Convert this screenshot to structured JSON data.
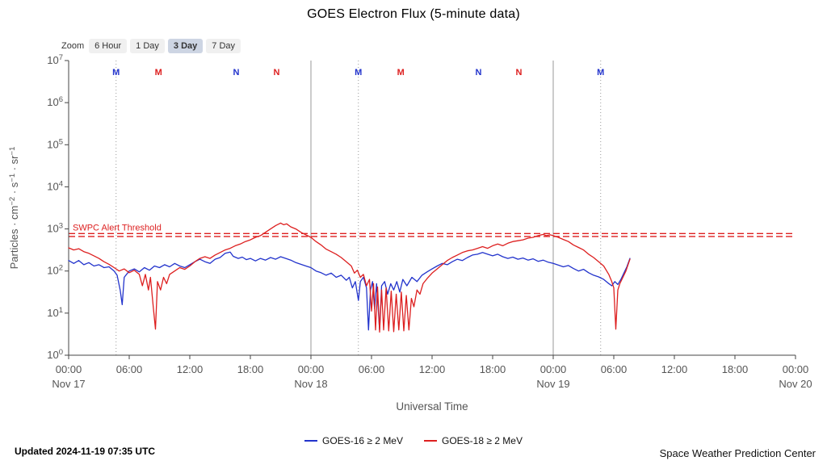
{
  "title": "GOES Electron Flux (5-minute data)",
  "zoom": {
    "label": "Zoom",
    "options": [
      {
        "label": "6 Hour",
        "selected": false
      },
      {
        "label": "1 Day",
        "selected": false
      },
      {
        "label": "3 Day",
        "selected": true
      },
      {
        "label": "7 Day",
        "selected": false
      }
    ]
  },
  "legend": [
    {
      "label": "GOES-16 ≥ 2 MeV",
      "color": "#2233cc"
    },
    {
      "label": "GOES-18 ≥ 2 MeV",
      "color": "#dd1f1f"
    }
  ],
  "footer": {
    "updated": "Updated 2024-11-19 07:35 UTC",
    "source": "Space Weather Prediction Center"
  },
  "chart_data": {
    "type": "line",
    "title": "GOES Electron Flux (5-minute data)",
    "xlabel": "Universal Time",
    "ylabel": "Particles · cm⁻² · s⁻¹ · sr⁻¹",
    "ylabel_segments": [
      {
        "text": "Particles · cm",
        "sup": false
      },
      {
        "text": "−2",
        "sup": true
      },
      {
        "text": " · s",
        "sup": false
      },
      {
        "text": "−1",
        "sup": true
      },
      {
        "text": " · sr",
        "sup": false
      },
      {
        "text": "−1",
        "sup": true
      }
    ],
    "y_scale": "log10",
    "ylim_log10": [
      0,
      7
    ],
    "y_exponents": [
      0,
      1,
      2,
      3,
      4,
      5,
      6,
      7
    ],
    "xlim": [
      0,
      72
    ],
    "x_unit": "hours since Nov 17 00:00 UT",
    "x_ticks": [
      {
        "hour": 0,
        "label": "00:00",
        "date": "Nov 17"
      },
      {
        "hour": 6,
        "label": "06:00"
      },
      {
        "hour": 12,
        "label": "12:00"
      },
      {
        "hour": 18,
        "label": "18:00"
      },
      {
        "hour": 24,
        "label": "00:00",
        "date": "Nov 18"
      },
      {
        "hour": 30,
        "label": "06:00"
      },
      {
        "hour": 36,
        "label": "12:00"
      },
      {
        "hour": 42,
        "label": "18:00"
      },
      {
        "hour": 48,
        "label": "00:00",
        "date": "Nov 19"
      },
      {
        "hour": 54,
        "label": "06:00"
      },
      {
        "hour": 60,
        "label": "12:00"
      },
      {
        "hour": 66,
        "label": "18:00"
      },
      {
        "hour": 72,
        "label": "00:00",
        "date": "Nov 20"
      }
    ],
    "day_lines_hours": [
      24,
      48
    ],
    "dotted_lines_hours": [
      4.7,
      28.7,
      52.7
    ],
    "threshold": {
      "label": "SWPC Alert Threshold",
      "lines_log10": [
        2.89,
        2.82
      ],
      "color": "#dd1f1f"
    },
    "satellite_markers": [
      {
        "hour": 4.7,
        "label": "M",
        "color": "#2233cc"
      },
      {
        "hour": 8.9,
        "label": "M",
        "color": "#dd1f1f"
      },
      {
        "hour": 16.6,
        "label": "N",
        "color": "#2233cc"
      },
      {
        "hour": 20.6,
        "label": "N",
        "color": "#dd1f1f"
      },
      {
        "hour": 28.7,
        "label": "M",
        "color": "#2233cc"
      },
      {
        "hour": 32.9,
        "label": "M",
        "color": "#dd1f1f"
      },
      {
        "hour": 40.6,
        "label": "N",
        "color": "#2233cc"
      },
      {
        "hour": 44.6,
        "label": "N",
        "color": "#dd1f1f"
      },
      {
        "hour": 52.7,
        "label": "M",
        "color": "#2233cc"
      }
    ],
    "legend_position": "bottom",
    "grid": "vertical day separators solid, satellite-midnight lines dotted, no horizontal gridlines",
    "series": [
      {
        "name": "GOES-16 ≥ 2 MeV",
        "color": "#2233cc",
        "points": [
          [
            0,
            2.25
          ],
          [
            0.5,
            2.18
          ],
          [
            1,
            2.25
          ],
          [
            1.5,
            2.15
          ],
          [
            2,
            2.2
          ],
          [
            2.5,
            2.12
          ],
          [
            3,
            2.15
          ],
          [
            3.5,
            2.08
          ],
          [
            4,
            2.1
          ],
          [
            4.5,
            2.0
          ],
          [
            4.8,
            1.9
          ],
          [
            5.1,
            1.55
          ],
          [
            5.3,
            1.2
          ],
          [
            5.5,
            1.85
          ],
          [
            6,
            2.0
          ],
          [
            6.5,
            2.05
          ],
          [
            7,
            1.98
          ],
          [
            7.5,
            2.08
          ],
          [
            8,
            2.02
          ],
          [
            8.5,
            2.12
          ],
          [
            9,
            2.08
          ],
          [
            9.5,
            2.15
          ],
          [
            10,
            2.1
          ],
          [
            10.5,
            2.18
          ],
          [
            11,
            2.12
          ],
          [
            11.5,
            2.08
          ],
          [
            12,
            2.15
          ],
          [
            12.5,
            2.22
          ],
          [
            13,
            2.28
          ],
          [
            13.5,
            2.22
          ],
          [
            14,
            2.18
          ],
          [
            14.5,
            2.28
          ],
          [
            15,
            2.32
          ],
          [
            15.5,
            2.42
          ],
          [
            16,
            2.45
          ],
          [
            16.3,
            2.35
          ],
          [
            16.8,
            2.3
          ],
          [
            17.2,
            2.33
          ],
          [
            17.6,
            2.27
          ],
          [
            18,
            2.3
          ],
          [
            18.5,
            2.24
          ],
          [
            19,
            2.3
          ],
          [
            19.5,
            2.26
          ],
          [
            20,
            2.32
          ],
          [
            20.5,
            2.28
          ],
          [
            21,
            2.34
          ],
          [
            21.5,
            2.3
          ],
          [
            22,
            2.26
          ],
          [
            22.5,
            2.2
          ],
          [
            23,
            2.16
          ],
          [
            23.5,
            2.12
          ],
          [
            24,
            2.08
          ],
          [
            24.5,
            2.0
          ],
          [
            25,
            1.96
          ],
          [
            25.5,
            1.9
          ],
          [
            26,
            1.95
          ],
          [
            26.5,
            1.85
          ],
          [
            27,
            1.9
          ],
          [
            27.5,
            1.78
          ],
          [
            27.8,
            1.85
          ],
          [
            28.1,
            1.6
          ],
          [
            28.4,
            1.75
          ],
          [
            28.7,
            1.3
          ],
          [
            28.9,
            1.75
          ],
          [
            29.2,
            1.85
          ],
          [
            29.5,
            1.6
          ],
          [
            29.7,
            0.6
          ],
          [
            29.9,
            1.55
          ],
          [
            30.1,
            1.75
          ],
          [
            30.3,
            1.1
          ],
          [
            30.5,
            1.7
          ],
          [
            30.8,
            0.6
          ],
          [
            31,
            1.65
          ],
          [
            31.3,
            1.75
          ],
          [
            31.6,
            1.45
          ],
          [
            31.9,
            1.7
          ],
          [
            32.2,
            1.55
          ],
          [
            32.5,
            1.75
          ],
          [
            32.8,
            1.5
          ],
          [
            33.1,
            1.8
          ],
          [
            33.5,
            1.65
          ],
          [
            34,
            1.85
          ],
          [
            34.5,
            1.75
          ],
          [
            35,
            1.9
          ],
          [
            35.5,
            1.98
          ],
          [
            36,
            2.05
          ],
          [
            36.5,
            2.12
          ],
          [
            37,
            2.18
          ],
          [
            37.5,
            2.15
          ],
          [
            38,
            2.22
          ],
          [
            38.5,
            2.28
          ],
          [
            39,
            2.25
          ],
          [
            39.5,
            2.32
          ],
          [
            40,
            2.38
          ],
          [
            40.5,
            2.4
          ],
          [
            41,
            2.44
          ],
          [
            41.5,
            2.4
          ],
          [
            42,
            2.36
          ],
          [
            42.5,
            2.4
          ],
          [
            43,
            2.34
          ],
          [
            43.5,
            2.3
          ],
          [
            44,
            2.33
          ],
          [
            44.5,
            2.28
          ],
          [
            45,
            2.31
          ],
          [
            45.5,
            2.26
          ],
          [
            46,
            2.29
          ],
          [
            46.5,
            2.23
          ],
          [
            47,
            2.26
          ],
          [
            47.5,
            2.21
          ],
          [
            48,
            2.18
          ],
          [
            48.5,
            2.14
          ],
          [
            49,
            2.1
          ],
          [
            49.5,
            2.13
          ],
          [
            50,
            2.06
          ],
          [
            50.5,
            2.0
          ],
          [
            51,
            2.04
          ],
          [
            51.5,
            1.96
          ],
          [
            52,
            1.9
          ],
          [
            52.5,
            1.86
          ],
          [
            53,
            1.8
          ],
          [
            53.4,
            1.72
          ],
          [
            53.8,
            1.65
          ],
          [
            54.1,
            1.75
          ],
          [
            54.4,
            1.68
          ],
          [
            54.7,
            1.8
          ],
          [
            55,
            1.95
          ],
          [
            55.3,
            2.1
          ],
          [
            55.6,
            2.3
          ]
        ]
      },
      {
        "name": "GOES-18 ≥ 2 MeV",
        "color": "#dd1f1f",
        "points": [
          [
            0,
            2.55
          ],
          [
            0.5,
            2.5
          ],
          [
            1,
            2.53
          ],
          [
            1.5,
            2.46
          ],
          [
            2,
            2.42
          ],
          [
            2.5,
            2.36
          ],
          [
            3,
            2.3
          ],
          [
            3.5,
            2.22
          ],
          [
            4,
            2.16
          ],
          [
            4.5,
            2.08
          ],
          [
            5,
            2.0
          ],
          [
            5.5,
            2.05
          ],
          [
            6,
            1.96
          ],
          [
            6.5,
            2.02
          ],
          [
            7,
            1.92
          ],
          [
            7.3,
            1.65
          ],
          [
            7.6,
            1.92
          ],
          [
            7.9,
            1.55
          ],
          [
            8.1,
            1.85
          ],
          [
            8.4,
            1.1
          ],
          [
            8.6,
            0.62
          ],
          [
            8.8,
            1.75
          ],
          [
            9.1,
            1.55
          ],
          [
            9.4,
            1.85
          ],
          [
            9.7,
            1.7
          ],
          [
            10,
            1.92
          ],
          [
            10.5,
            2.0
          ],
          [
            11,
            2.08
          ],
          [
            11.5,
            2.04
          ],
          [
            12,
            2.12
          ],
          [
            12.5,
            2.22
          ],
          [
            13,
            2.3
          ],
          [
            13.5,
            2.34
          ],
          [
            14,
            2.3
          ],
          [
            14.5,
            2.38
          ],
          [
            15,
            2.44
          ],
          [
            15.5,
            2.5
          ],
          [
            16,
            2.54
          ],
          [
            16.5,
            2.6
          ],
          [
            17,
            2.64
          ],
          [
            17.5,
            2.7
          ],
          [
            18,
            2.74
          ],
          [
            18.5,
            2.8
          ],
          [
            19,
            2.84
          ],
          [
            19.5,
            2.92
          ],
          [
            20,
            3.0
          ],
          [
            20.5,
            3.08
          ],
          [
            21,
            3.14
          ],
          [
            21.3,
            3.1
          ],
          [
            21.6,
            3.12
          ],
          [
            22,
            3.05
          ],
          [
            22.5,
            3.0
          ],
          [
            23,
            2.92
          ],
          [
            23.5,
            2.86
          ],
          [
            24,
            2.8
          ],
          [
            24.5,
            2.7
          ],
          [
            25,
            2.62
          ],
          [
            25.5,
            2.52
          ],
          [
            26,
            2.46
          ],
          [
            26.5,
            2.4
          ],
          [
            27,
            2.32
          ],
          [
            27.5,
            2.22
          ],
          [
            28,
            2.12
          ],
          [
            28.3,
            1.95
          ],
          [
            28.6,
            2.02
          ],
          [
            28.9,
            1.85
          ],
          [
            29.2,
            1.92
          ],
          [
            29.5,
            1.65
          ],
          [
            29.8,
            1.8
          ],
          [
            30,
            1.05
          ],
          [
            30.2,
            1.7
          ],
          [
            30.4,
            0.6
          ],
          [
            30.6,
            1.62
          ],
          [
            30.8,
            0.55
          ],
          [
            31,
            1.55
          ],
          [
            31.2,
            0.6
          ],
          [
            31.45,
            1.6
          ],
          [
            31.7,
            0.58
          ],
          [
            31.95,
            1.52
          ],
          [
            32.2,
            0.56
          ],
          [
            32.45,
            1.45
          ],
          [
            32.7,
            0.6
          ],
          [
            32.95,
            1.5
          ],
          [
            33.2,
            0.58
          ],
          [
            33.45,
            1.42
          ],
          [
            33.7,
            0.6
          ],
          [
            33.95,
            1.35
          ],
          [
            34.2,
            1.15
          ],
          [
            34.5,
            1.55
          ],
          [
            34.8,
            1.45
          ],
          [
            35.1,
            1.7
          ],
          [
            35.5,
            1.82
          ],
          [
            36,
            1.95
          ],
          [
            36.5,
            2.05
          ],
          [
            37,
            2.15
          ],
          [
            37.5,
            2.25
          ],
          [
            38,
            2.32
          ],
          [
            38.5,
            2.38
          ],
          [
            39,
            2.44
          ],
          [
            39.5,
            2.48
          ],
          [
            40,
            2.5
          ],
          [
            40.5,
            2.54
          ],
          [
            41,
            2.58
          ],
          [
            41.5,
            2.54
          ],
          [
            42,
            2.6
          ],
          [
            42.5,
            2.64
          ],
          [
            43,
            2.6
          ],
          [
            43.5,
            2.66
          ],
          [
            44,
            2.7
          ],
          [
            44.5,
            2.72
          ],
          [
            45,
            2.74
          ],
          [
            45.5,
            2.78
          ],
          [
            46,
            2.8
          ],
          [
            46.5,
            2.84
          ],
          [
            47,
            2.87
          ],
          [
            47.3,
            2.84
          ],
          [
            47.7,
            2.86
          ],
          [
            48,
            2.84
          ],
          [
            48.5,
            2.8
          ],
          [
            49,
            2.75
          ],
          [
            49.5,
            2.7
          ],
          [
            50,
            2.62
          ],
          [
            50.5,
            2.56
          ],
          [
            51,
            2.5
          ],
          [
            51.5,
            2.4
          ],
          [
            52,
            2.32
          ],
          [
            52.5,
            2.22
          ],
          [
            53,
            2.12
          ],
          [
            53.5,
            1.92
          ],
          [
            53.8,
            1.75
          ],
          [
            54,
            1.6
          ],
          [
            54.2,
            0.62
          ],
          [
            54.4,
            1.55
          ],
          [
            54.6,
            1.7
          ],
          [
            54.9,
            1.85
          ],
          [
            55.2,
            2.0
          ],
          [
            55.6,
            2.28
          ]
        ]
      }
    ]
  }
}
